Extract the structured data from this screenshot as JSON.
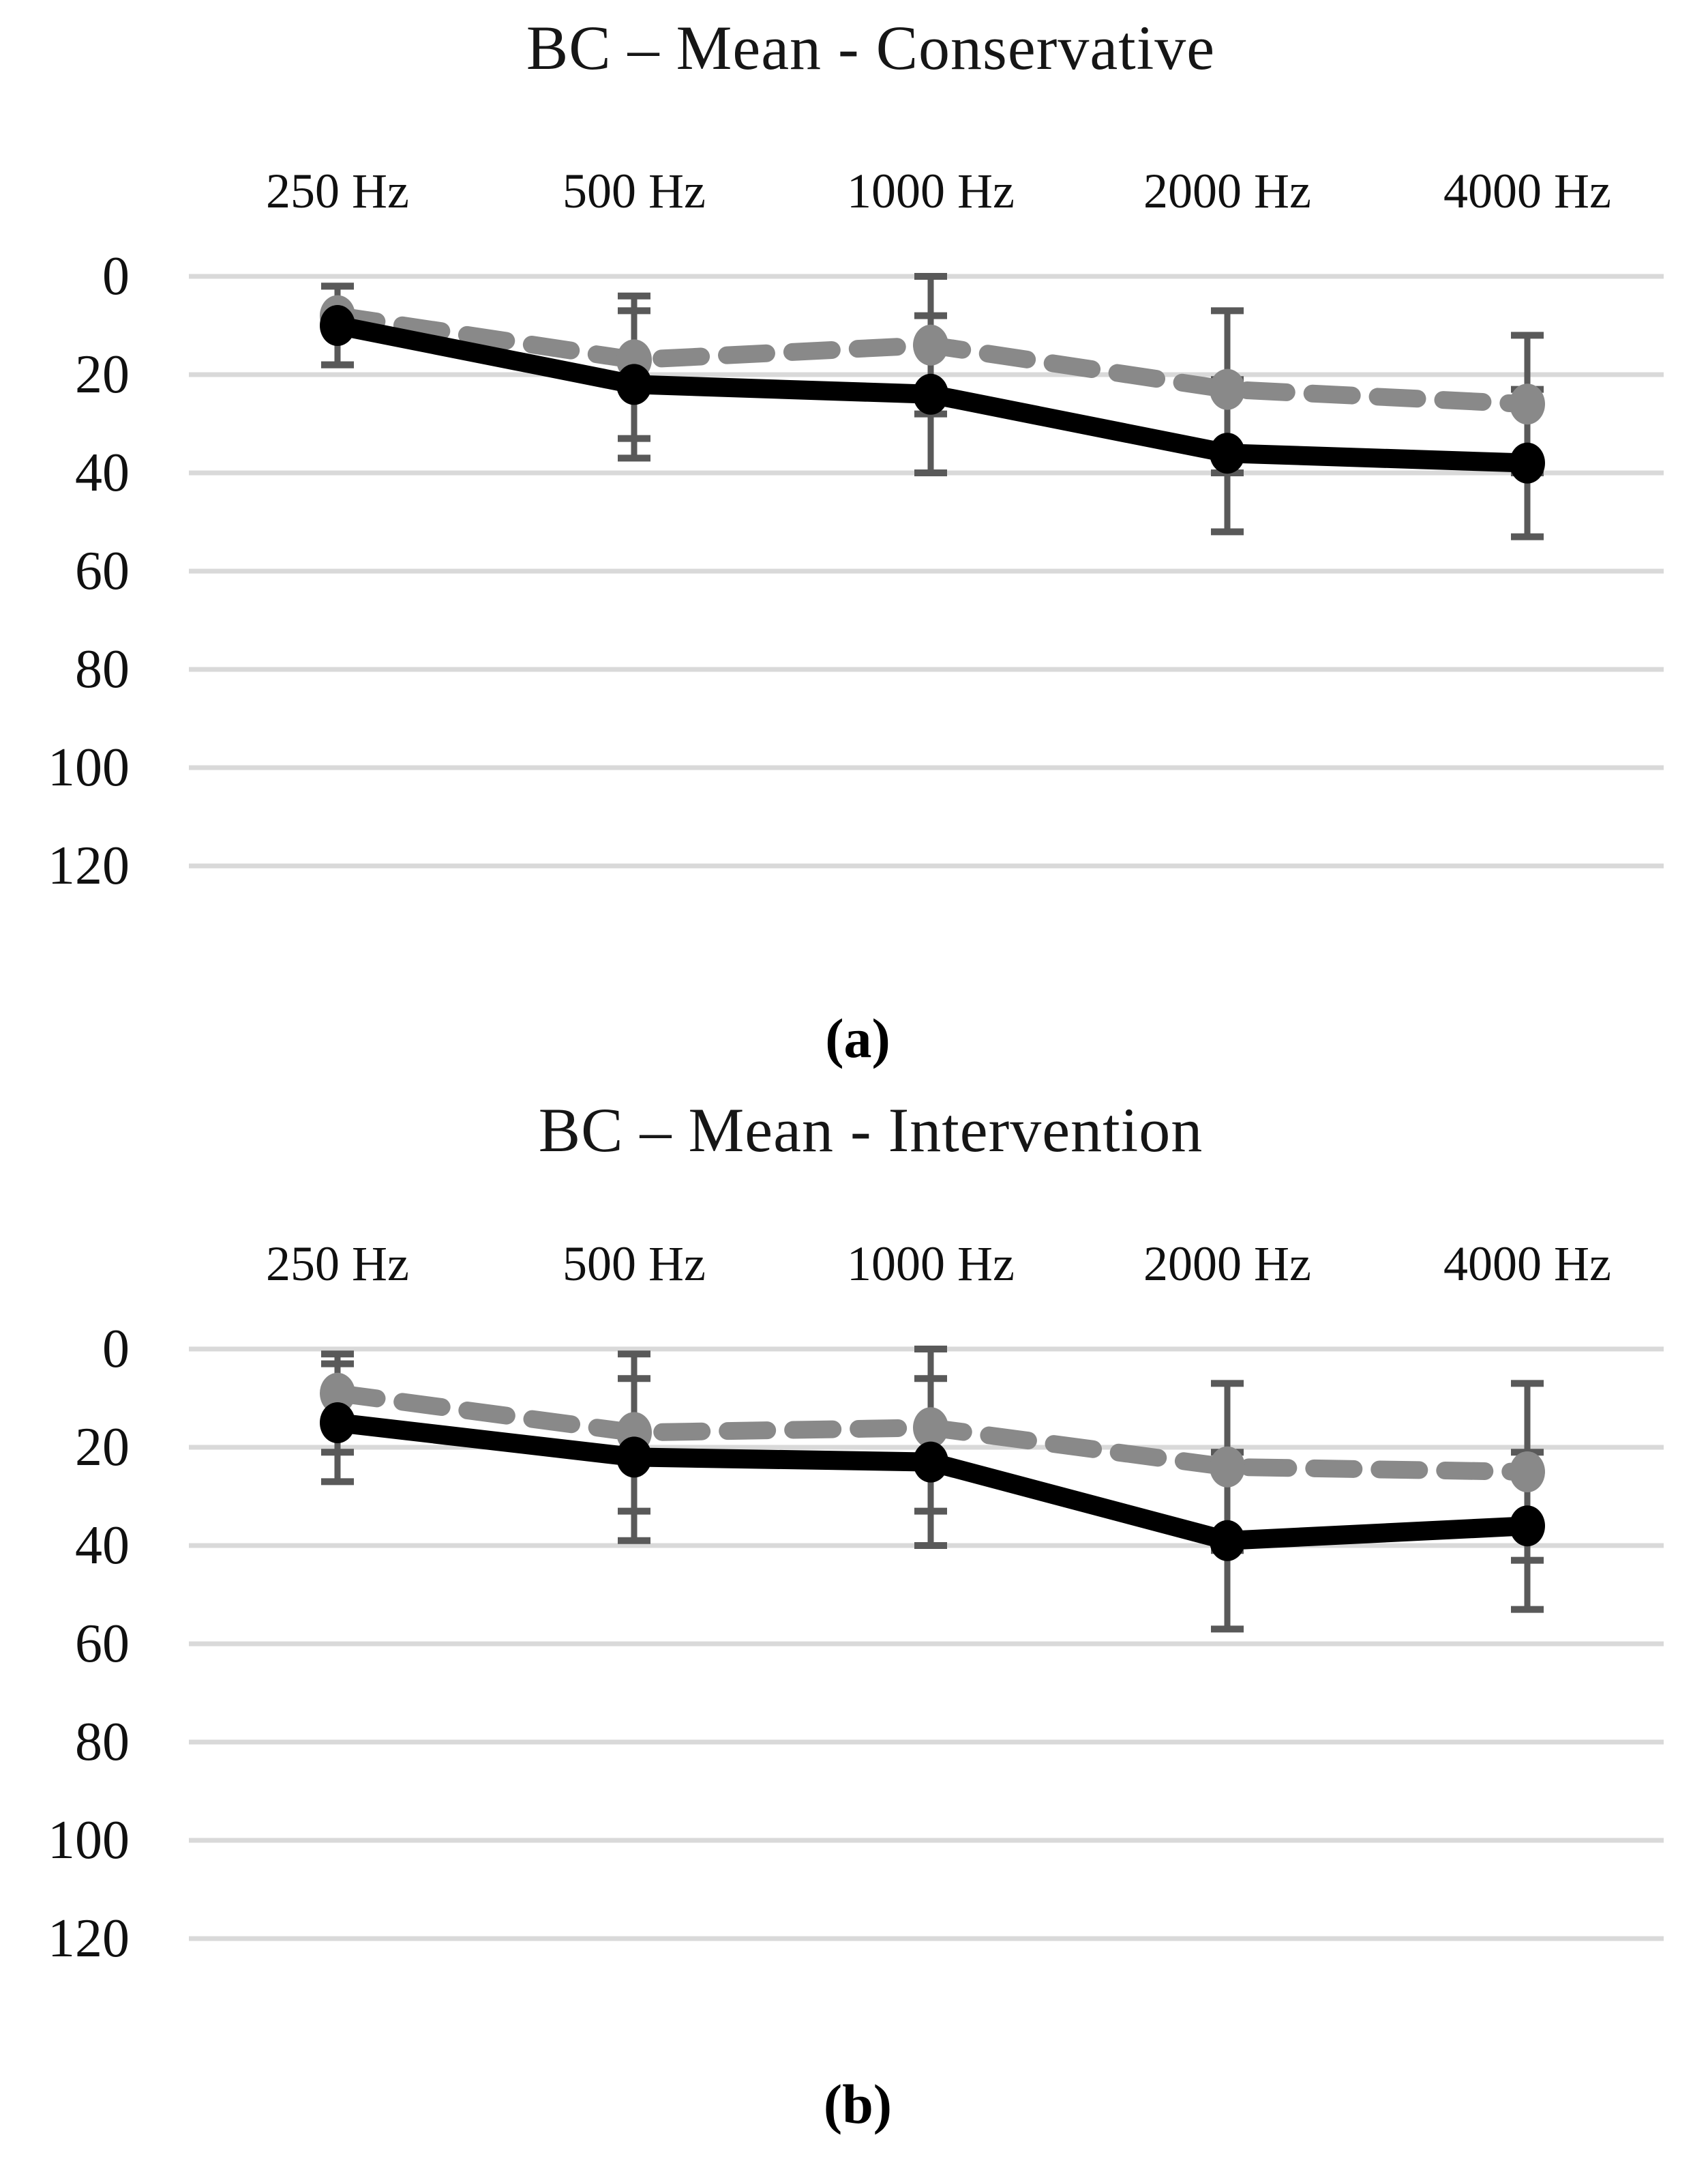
{
  "figure": {
    "background": "#ffffff",
    "text_color": "#111111",
    "gridline_color": "#d9d9d9",
    "error_bar_color": "#595959",
    "series_colors": {
      "solid": "#000000",
      "dashed": "#898989"
    }
  },
  "chart_data": [
    {
      "type": "line",
      "title": "BC – Mean - Conservative",
      "sublabel": "(a)",
      "categories": [
        "250 Hz",
        "500 Hz",
        "1000 Hz",
        "2000 Hz",
        "4000 Hz"
      ],
      "xlabel": "",
      "ylabel": "",
      "y_axis": {
        "ticks": [
          0,
          20,
          40,
          60,
          80,
          100,
          120
        ],
        "range": [
          0,
          130
        ],
        "inverted": true
      },
      "grid": "horizontal",
      "legend_position": "none",
      "series": [
        {
          "name": "solid-black",
          "style": "solid",
          "color": "#000000",
          "marker": "circle",
          "values": [
            10,
            22,
            24,
            36,
            38
          ],
          "error_low": [
            2,
            7,
            8,
            21,
            23
          ],
          "error_high": [
            18,
            37,
            40,
            52,
            53
          ]
        },
        {
          "name": "dashed-gray",
          "style": "dashed",
          "color": "#898989",
          "marker": "circle",
          "values": [
            8,
            17,
            14,
            23,
            26
          ],
          "error_low": [
            2,
            4,
            0,
            7,
            12
          ],
          "error_high": [
            18,
            33,
            28,
            40,
            40
          ]
        }
      ]
    },
    {
      "type": "line",
      "title": "BC – Mean - Intervention",
      "sublabel": "(b)",
      "categories": [
        "250 Hz",
        "500 Hz",
        "1000 Hz",
        "2000 Hz",
        "4000 Hz"
      ],
      "xlabel": "",
      "ylabel": "",
      "y_axis": {
        "ticks": [
          0,
          20,
          40,
          60,
          80,
          100,
          120
        ],
        "range": [
          0,
          130
        ],
        "inverted": true
      },
      "grid": "horizontal",
      "legend_position": "none",
      "series": [
        {
          "name": "solid-black",
          "style": "solid",
          "color": "#000000",
          "marker": "circle",
          "values": [
            15,
            22,
            23,
            39,
            36
          ],
          "error_low": [
            3,
            6,
            6,
            21,
            21
          ],
          "error_high": [
            27,
            39,
            40,
            57,
            53
          ]
        },
        {
          "name": "dashed-gray",
          "style": "dashed",
          "color": "#898989",
          "marker": "circle",
          "values": [
            9,
            17,
            16,
            24,
            25
          ],
          "error_low": [
            1,
            1,
            0,
            7,
            7
          ],
          "error_high": [
            21,
            33,
            33,
            41,
            43
          ]
        }
      ]
    }
  ]
}
